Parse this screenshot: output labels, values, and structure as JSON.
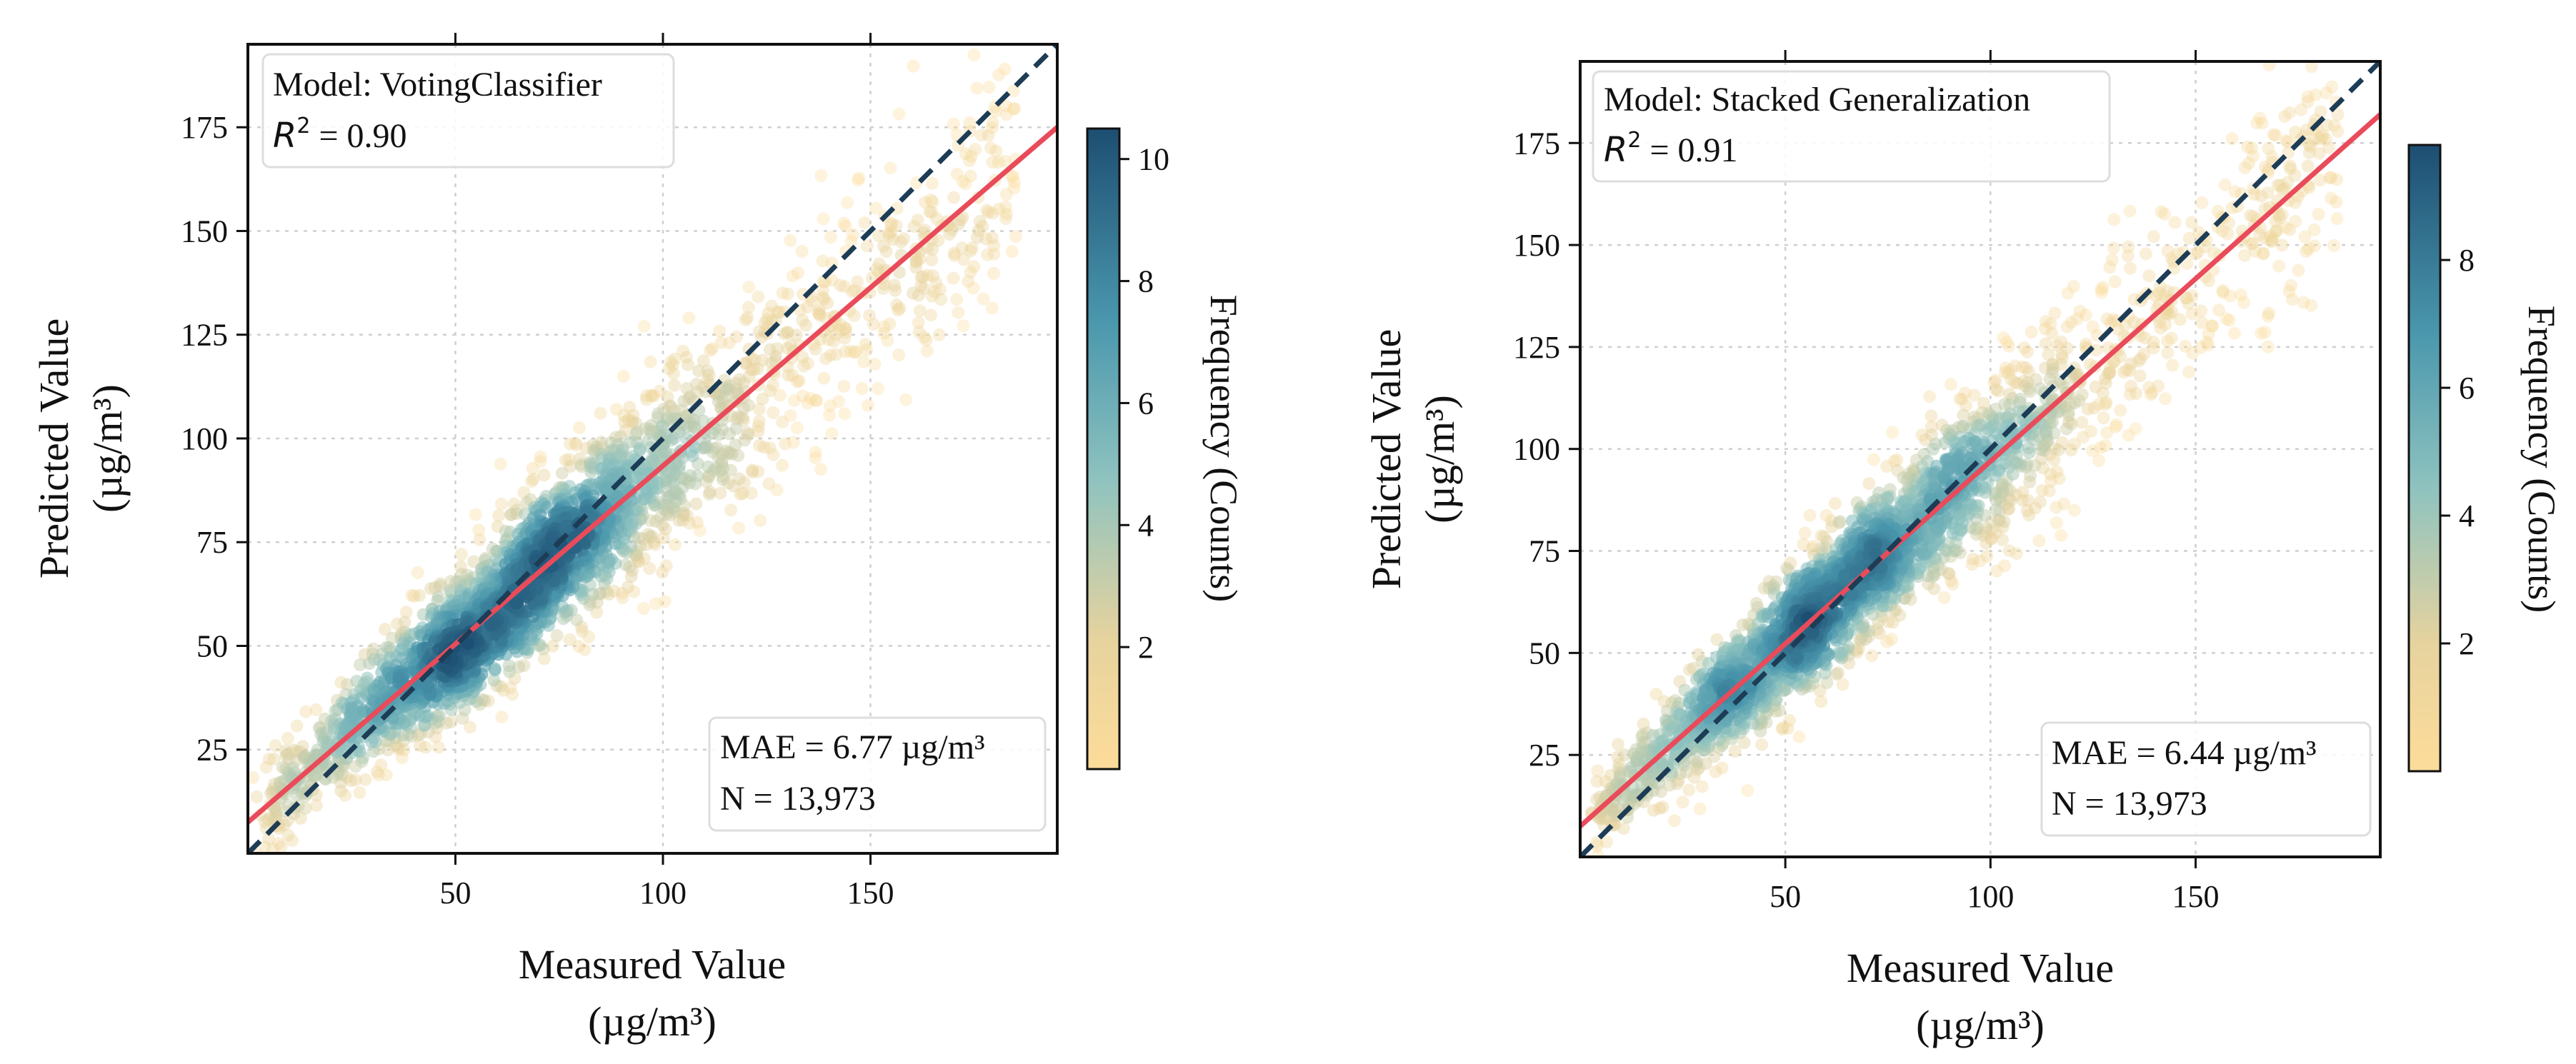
{
  "chart_data": [
    {
      "type": "scatter",
      "subtype": "density-colored scatter",
      "model_label": "Model: VotingClassifier",
      "r2_label": "R",
      "r2_sup": "2",
      "r2_value": " = 0.90",
      "r2": 0.9,
      "mae_label": "MAE = 6.77 µg/m³",
      "n_label": "N = 13,973",
      "xlabel": "Measured Value",
      "xlabel_unit": "(µg/m³)",
      "ylabel": "Predicted Value",
      "ylabel_unit": "(µg/m³)",
      "xlim": [
        0,
        195
      ],
      "ylim": [
        0,
        195
      ],
      "xticks": [
        "50",
        "100",
        "150"
      ],
      "xtick_values": [
        50,
        100,
        150
      ],
      "yticks": [
        "25",
        "50",
        "75",
        "100",
        "125",
        "150",
        "175"
      ],
      "ytick_values": [
        25,
        50,
        75,
        100,
        125,
        150,
        175
      ],
      "grid": true,
      "identity_line": {
        "from": [
          0,
          0
        ],
        "to": [
          195,
          195
        ],
        "color": "#1d3c56",
        "style": "dashed"
      },
      "fit_line": {
        "from": [
          0,
          7.5
        ],
        "to": [
          195,
          175
        ],
        "color": "#e94b5a"
      },
      "colorbar": {
        "label": "Frequency (Counts)",
        "min": 0,
        "max": 10.5,
        "ticks": [
          "2",
          "4",
          "6",
          "8",
          "10"
        ],
        "tick_values": [
          2,
          4,
          6,
          8,
          10
        ]
      },
      "point_cloud": {
        "x_range": [
          0,
          185
        ],
        "density_peak_x": 65,
        "scatter_sd": 7.5
      }
    },
    {
      "type": "scatter",
      "subtype": "density-colored scatter",
      "model_label": "Model: Stacked Generalization",
      "r2_label": "R",
      "r2_sup": "2",
      "r2_value": " = 0.91",
      "r2": 0.91,
      "mae_label": "MAE = 6.44 µg/m³",
      "n_label": "N = 13,973",
      "xlabel": "Measured Value",
      "xlabel_unit": "(µg/m³)",
      "ylabel": "Predicted Value",
      "ylabel_unit": "(µg/m³)",
      "xlim": [
        0,
        195
      ],
      "ylim": [
        0,
        195
      ],
      "xticks": [
        "50",
        "100",
        "150"
      ],
      "xtick_values": [
        50,
        100,
        150
      ],
      "yticks": [
        "25",
        "50",
        "75",
        "100",
        "125",
        "150",
        "175"
      ],
      "ytick_values": [
        25,
        50,
        75,
        100,
        125,
        150,
        175
      ],
      "grid": true,
      "identity_line": {
        "from": [
          0,
          0
        ],
        "to": [
          195,
          195
        ],
        "color": "#1d3c56",
        "style": "dashed"
      },
      "fit_line": {
        "from": [
          0,
          7.5
        ],
        "to": [
          195,
          182
        ],
        "color": "#e94b5a"
      },
      "colorbar": {
        "label": "Frequency (Counts)",
        "min": 0,
        "max": 9.8,
        "ticks": [
          "2",
          "4",
          "6",
          "8"
        ],
        "tick_values": [
          2,
          4,
          6,
          8
        ]
      },
      "point_cloud": {
        "x_range": [
          0,
          185
        ],
        "density_peak_x": 65,
        "scatter_sd": 7.0
      }
    }
  ],
  "colors": {
    "cmap_low": "#fddc9a",
    "cmap_mid": "#7fbcc0",
    "cmap_high": "#1d4e72",
    "identity": "#1d3c56",
    "fit": "#e94b5a",
    "grid": "#cfcfcf"
  }
}
